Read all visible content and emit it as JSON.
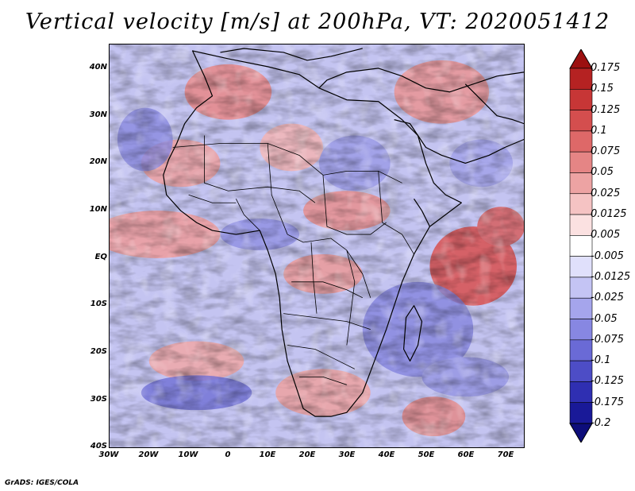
{
  "title": "Vertical velocity [m/s] at 200hPa, VT: 2020051412",
  "credit": "GrADS: IGES/COLA",
  "axes": {
    "lat_labels": [
      "40N",
      "30N",
      "20N",
      "10N",
      "EQ",
      "10S",
      "20S",
      "30S",
      "40S"
    ],
    "lon_labels": [
      "30W",
      "20W",
      "10W",
      "0",
      "10E",
      "20E",
      "30E",
      "40E",
      "50E",
      "60E",
      "70E"
    ]
  },
  "colorbar": {
    "labels": [
      "0.175",
      "0.15",
      "0.125",
      "0.1",
      "0.075",
      "0.05",
      "0.025",
      "0.0125",
      "0.005",
      "-0.005",
      "-0.0125",
      "-0.025",
      "-0.05",
      "-0.075",
      "-0.1",
      "-0.125",
      "-0.175",
      "-0.2"
    ],
    "colors": [
      "#9c1010",
      "#b52222",
      "#c73636",
      "#d44e4e",
      "#de6868",
      "#e58585",
      "#eda3a3",
      "#f5c3c3",
      "#fbe1e1",
      "#ffffff",
      "#e0e0fb",
      "#c4c4f4",
      "#a5a5ec",
      "#8787e2",
      "#6a6ad6",
      "#4d4dc6",
      "#2f2fb2",
      "#191998",
      "#0d0d7a"
    ]
  }
}
